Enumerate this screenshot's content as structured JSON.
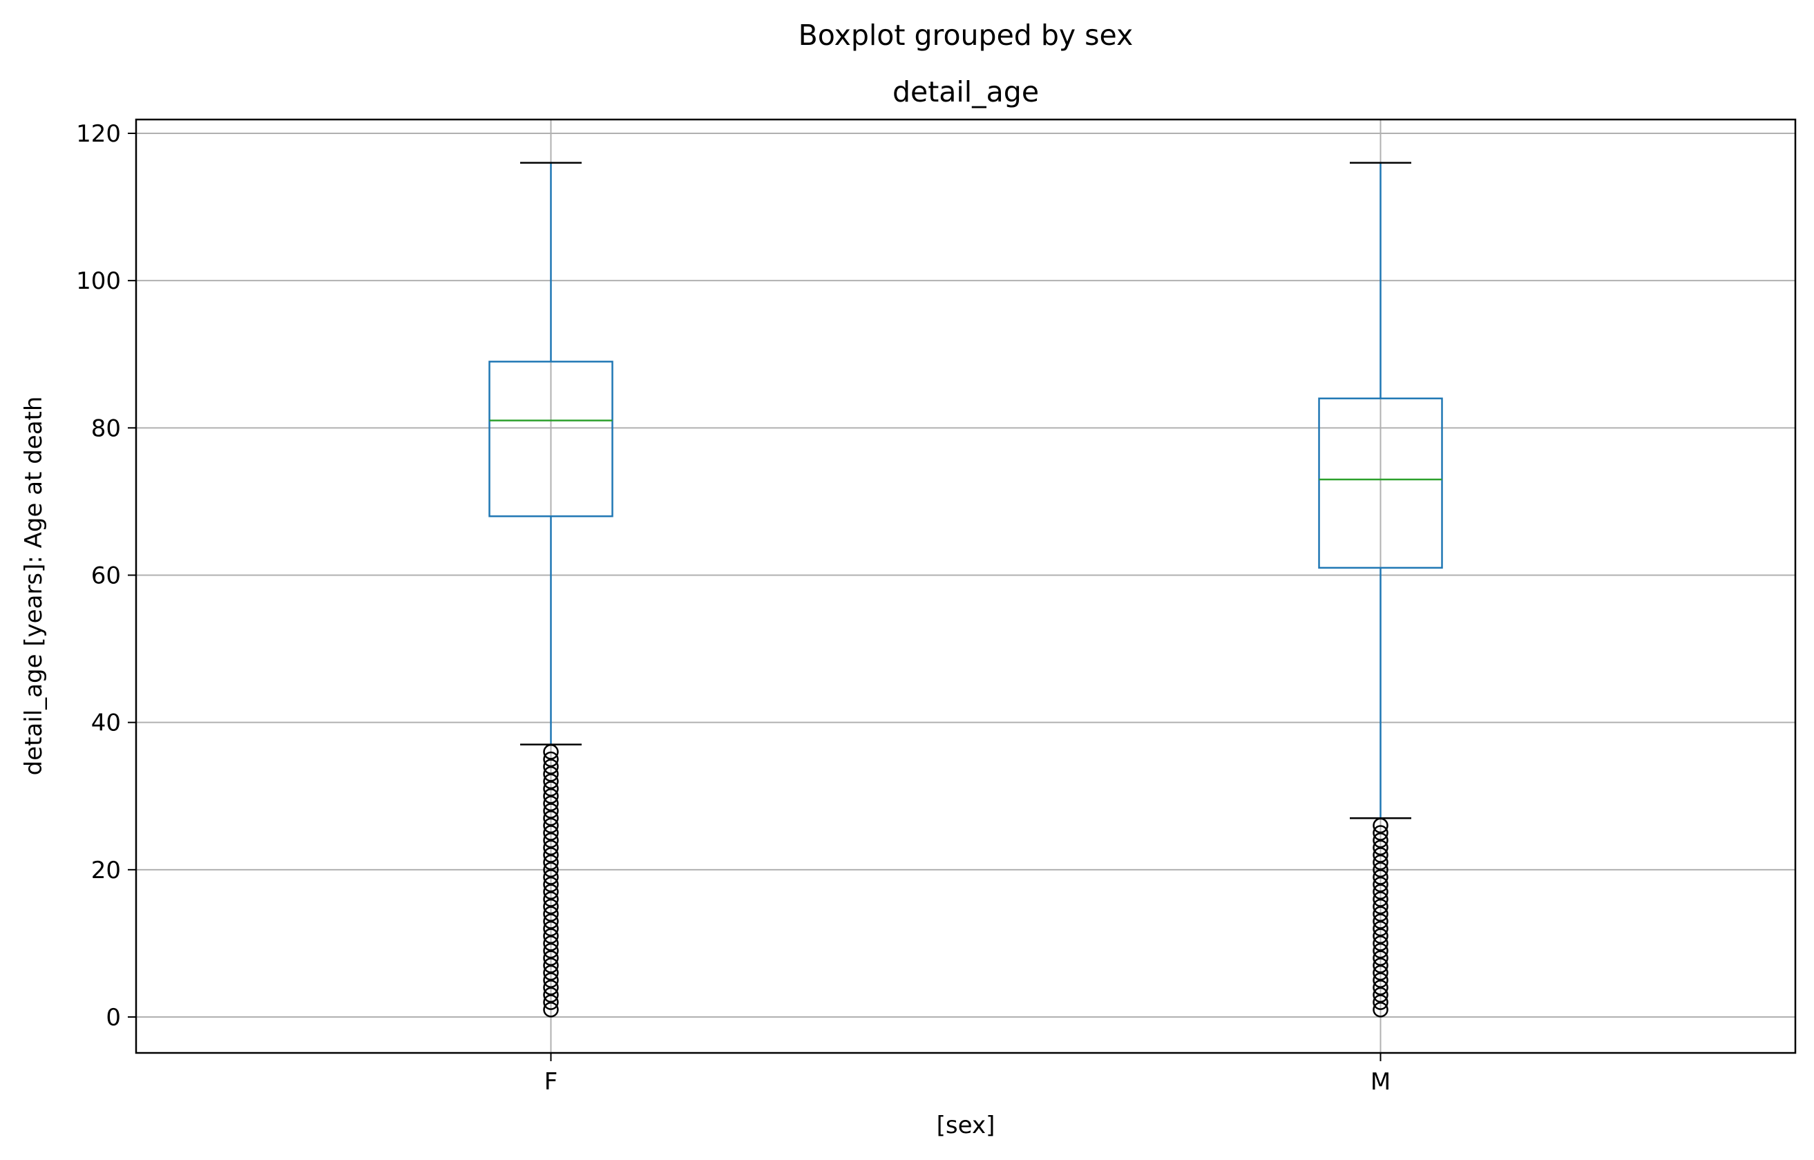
{
  "chart_data": {
    "type": "box",
    "suptitle": "Boxplot grouped by sex",
    "title": "detail_age",
    "xlabel": "[sex]",
    "ylabel": "detail_age [years]: Age at death",
    "categories": [
      "F",
      "M"
    ],
    "ylim": [
      -5,
      122
    ],
    "yticks": [
      0,
      20,
      40,
      60,
      80,
      100,
      120
    ],
    "grid": true,
    "colors": {
      "box": "#1f77b4",
      "median": "#2ca02c",
      "caps": "#000000",
      "grid": "#b0b0b0",
      "flier": "#000000"
    },
    "boxes": [
      {
        "category": "F",
        "whisker_low": 37,
        "q1": 68,
        "median": 81,
        "q3": 89,
        "whisker_high": 116,
        "fliers": [
          1,
          2,
          3,
          4,
          5,
          6,
          7,
          8,
          9,
          10,
          11,
          12,
          13,
          14,
          15,
          16,
          17,
          18,
          19,
          20,
          21,
          22,
          23,
          24,
          25,
          26,
          27,
          28,
          29,
          30,
          31,
          32,
          33,
          34,
          35,
          36
        ]
      },
      {
        "category": "M",
        "whisker_low": 27,
        "q1": 61,
        "median": 73,
        "q3": 84,
        "whisker_high": 116,
        "fliers": [
          1,
          2,
          3,
          4,
          5,
          6,
          7,
          8,
          9,
          10,
          11,
          12,
          13,
          14,
          15,
          16,
          17,
          18,
          19,
          20,
          21,
          22,
          23,
          24,
          25,
          26
        ]
      }
    ]
  }
}
